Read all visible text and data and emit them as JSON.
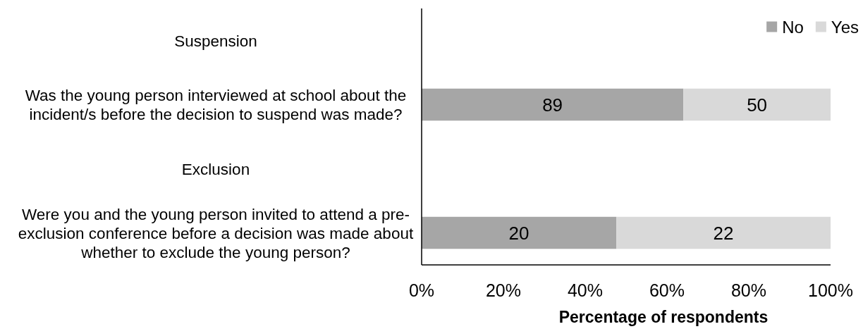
{
  "chart_data": {
    "type": "bar",
    "orientation": "horizontal",
    "stacked": true,
    "categories": [
      "Suspension",
      "Was the young person interviewed at school about the incident/s before the decision to suspend was made?",
      "Exclusion",
      "Were you and the young person invited to attend a pre-exclusion conference before a decision was made about whether to exclude the young person?"
    ],
    "series": [
      {
        "name": "No",
        "color": "#a6a6a6",
        "values": [
          null,
          64,
          null,
          47.6
        ]
      },
      {
        "name": "Yes",
        "color": "#d9d9d9",
        "values": [
          null,
          36,
          null,
          52.4
        ]
      }
    ],
    "annotations": [
      "89",
      "50",
      "20",
      "22"
    ],
    "xlabel": "Percentage of respondents",
    "xlim": [
      0,
      100
    ],
    "xticks": [
      {
        "value": 0,
        "label": "0%"
      },
      {
        "value": 20,
        "label": "20%"
      },
      {
        "value": 40,
        "label": "40%"
      },
      {
        "value": 60,
        "label": "60%"
      },
      {
        "value": 80,
        "label": "80%"
      },
      {
        "value": 100,
        "label": "100%"
      }
    ],
    "legend": "top right"
  }
}
